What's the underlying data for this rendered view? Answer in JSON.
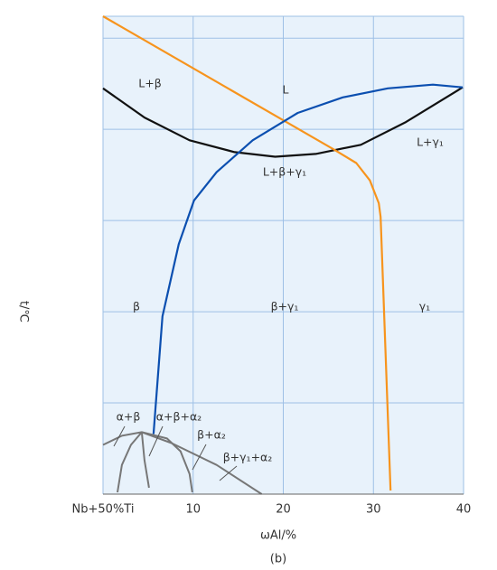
{
  "chart_data": {
    "type": "line",
    "xlabel": "ωAl/%",
    "ylabel": "t/℃",
    "caption": "(b)",
    "xlim": [
      0,
      40
    ],
    "ylim": [
      0,
      5.24
    ],
    "xticks": [
      {
        "value": 0,
        "label": "Nb+50%Ti"
      },
      10,
      20,
      30,
      40
    ],
    "ygrid": [
      1,
      2,
      3,
      4,
      5
    ],
    "grid": true,
    "series": [
      {
        "color": "#111111",
        "x": [
          0,
          4.6,
          9.6,
          14.6,
          19.1,
          23.6,
          28.6,
          33.6,
          39.9
        ],
        "y": [
          4.45,
          4.13,
          3.88,
          3.75,
          3.7,
          3.73,
          3.83,
          4.08,
          4.46
        ]
      },
      {
        "color": "#f7941d",
        "x": [
          0,
          25.6,
          28.1,
          29.6,
          30.6,
          30.8,
          31.9
        ],
        "y": [
          5.24,
          3.78,
          3.63,
          3.44,
          3.19,
          3.04,
          0.04
        ]
      },
      {
        "color": "#0b4fb0",
        "x": [
          5.6,
          6.6,
          8.4,
          10.1,
          12.6,
          16.6,
          21.6,
          26.6,
          31.6,
          36.6,
          39.9
        ],
        "y": [
          0.66,
          1.95,
          2.74,
          3.22,
          3.53,
          3.88,
          4.18,
          4.35,
          4.45,
          4.49,
          4.46
        ]
      },
      {
        "color": "#777777",
        "x": [
          0,
          2.1,
          4.3,
          7.6,
          12.6,
          17.6
        ],
        "y": [
          0.54,
          0.64,
          0.68,
          0.56,
          0.32,
          0
        ]
      },
      {
        "color": "#777777",
        "x": [
          1.6,
          2.1,
          3.1,
          4.3
        ],
        "y": [
          0.02,
          0.32,
          0.54,
          0.68
        ]
      },
      {
        "color": "#777777",
        "x": [
          5.1,
          4.6,
          4.3
        ],
        "y": [
          0.07,
          0.37,
          0.68
        ]
      },
      {
        "color": "#777777",
        "x": [
          4.3,
          7.1,
          8.6,
          9.6,
          9.9
        ],
        "y": [
          0.68,
          0.61,
          0.47,
          0.22,
          0.02
        ]
      }
    ],
    "annotations": [
      "L+β",
      "L",
      "L+γ₁",
      "L+β+γ₁",
      "β",
      "β+γ₁",
      "γ₁",
      "α+β",
      "α+β+α₂",
      "β+α₂",
      "β+γ₁+α₂"
    ]
  }
}
